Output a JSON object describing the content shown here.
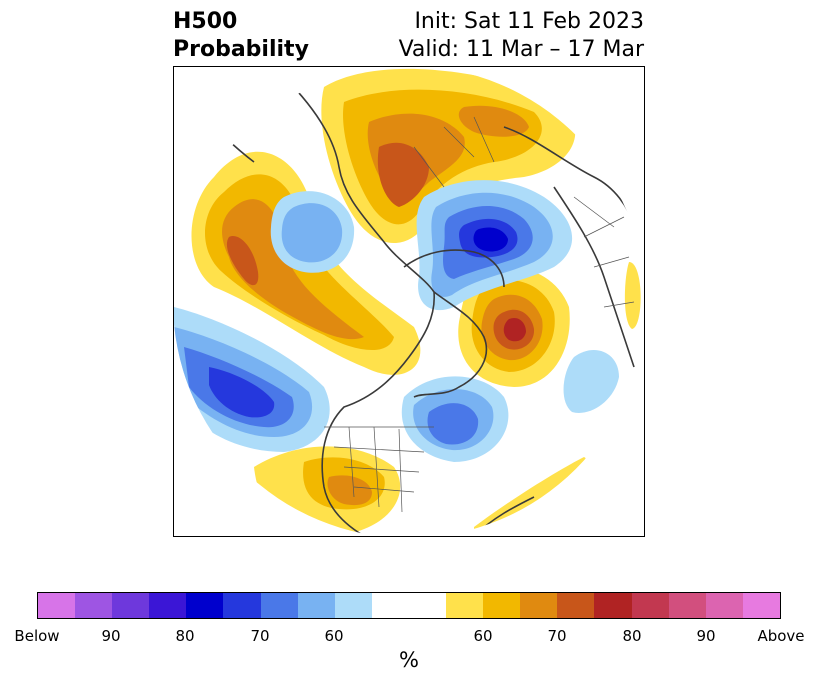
{
  "header": {
    "title_line1": "H500",
    "title_line2": "Probability",
    "init": "Init: Sat 11 Feb 2023",
    "valid": "Valid: 11 Mar – 17 Mar"
  },
  "map": {
    "projection": "north-polar-stereographic",
    "fields": [
      {
        "name": "below-normal",
        "color_family": "blue"
      },
      {
        "name": "above-normal",
        "color_family": "orange-red"
      }
    ]
  },
  "colorbar": {
    "segments": [
      "#d774e8",
      "#9e55e3",
      "#6e38dc",
      "#3b16d6",
      "#0000cd",
      "#2538dd",
      "#4a78e8",
      "#78b2f2",
      "#addcf9",
      "#ffffff",
      "#ffe14b",
      "#f2b800",
      "#e08a10",
      "#c8561a",
      "#b02323",
      "#c23850",
      "#d24f7e",
      "#dc64b0",
      "#e77ae0"
    ],
    "tick_labels": [
      "Below",
      "90",
      "80",
      "70",
      "60",
      "60",
      "70",
      "80",
      "90",
      "Above"
    ],
    "units": "%"
  }
}
